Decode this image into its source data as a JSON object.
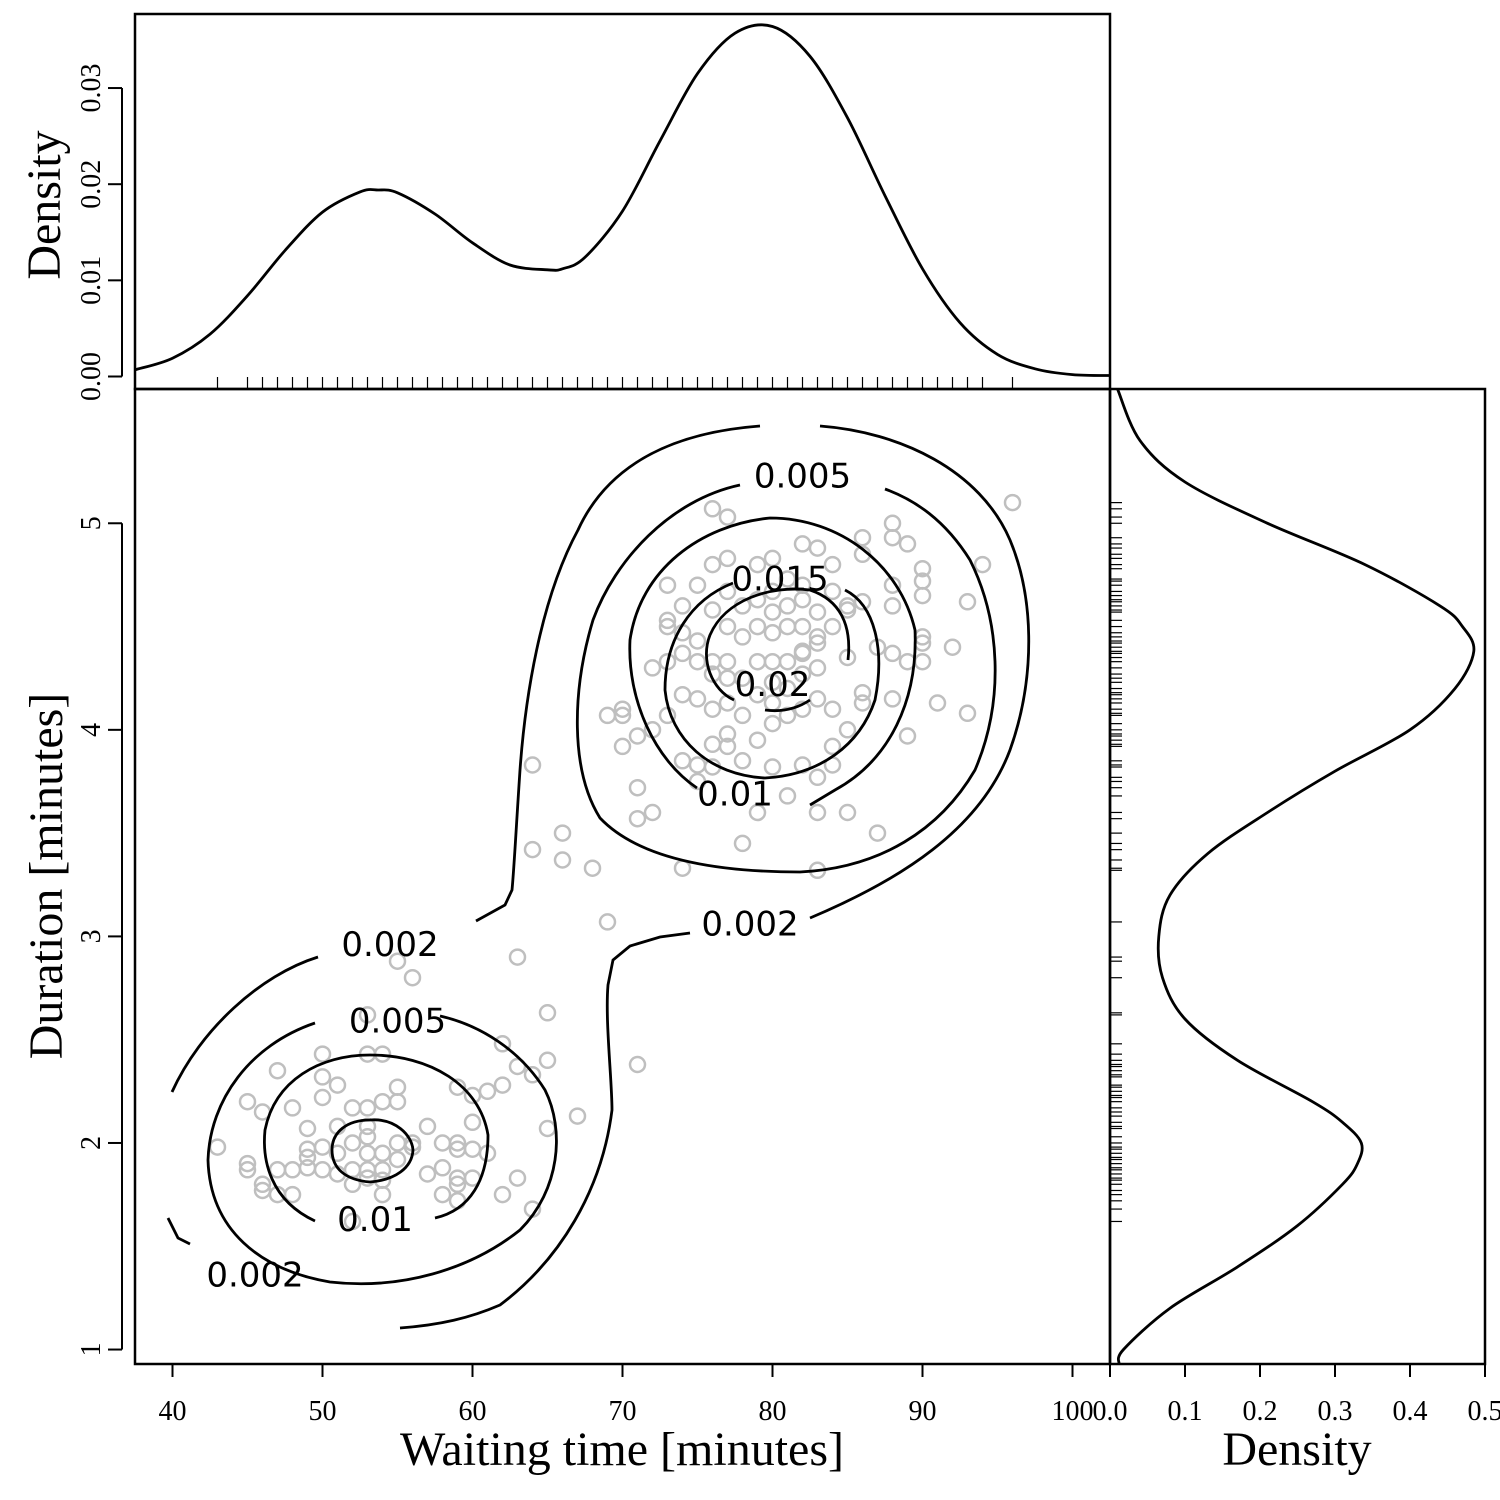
{
  "chart_data": [
    {
      "panel": "joint",
      "type": "scatter",
      "xlabel": "Waiting time [minutes]",
      "ylabel": "Duration [minutes]",
      "xlim": [
        37.5,
        102.5
      ],
      "ylim": [
        0.93,
        5.65
      ],
      "xticks": [
        40,
        50,
        60,
        70,
        80,
        90,
        100
      ],
      "yticks": [
        1,
        2,
        3,
        4,
        5
      ],
      "grid": false,
      "point_color": "#bfbfbf",
      "contour_levels": [
        {
          "label": "0.002"
        },
        {
          "label": "0.005"
        },
        {
          "label": "0.01"
        },
        {
          "label": "0.015"
        },
        {
          "label": "0.02"
        }
      ],
      "contour_labels": [
        {
          "text": "0.002",
          "x": 54.5,
          "y": 2.95
        },
        {
          "text": "0.002",
          "x": 78.5,
          "y": 3.05
        },
        {
          "text": "0.002",
          "x": 45.5,
          "y": 1.35
        },
        {
          "text": "0.005",
          "x": 55.0,
          "y": 2.58
        },
        {
          "text": "0.005",
          "x": 82.0,
          "y": 5.22
        },
        {
          "text": "0.01",
          "x": 53.5,
          "y": 1.62
        },
        {
          "text": "0.01",
          "x": 77.5,
          "y": 3.68
        },
        {
          "text": "0.015",
          "x": 80.5,
          "y": 4.72
        },
        {
          "text": "0.02",
          "x": 80.0,
          "y": 4.21
        }
      ],
      "points": [
        [
          43,
          1.98
        ],
        [
          45,
          2.2
        ],
        [
          45,
          1.9
        ],
        [
          45,
          1.87
        ],
        [
          46,
          2.15
        ],
        [
          46,
          1.8
        ],
        [
          46,
          1.77
        ],
        [
          47,
          2.35
        ],
        [
          47,
          1.87
        ],
        [
          47,
          1.75
        ],
        [
          48,
          2.17
        ],
        [
          48,
          1.87
        ],
        [
          48,
          1.75
        ],
        [
          49,
          2.07
        ],
        [
          49,
          1.97
        ],
        [
          49,
          1.88
        ],
        [
          49,
          1.93
        ],
        [
          50,
          2.43
        ],
        [
          50,
          2.32
        ],
        [
          50,
          2.22
        ],
        [
          50,
          1.98
        ],
        [
          50,
          1.87
        ],
        [
          51,
          2.28
        ],
        [
          51,
          2.08
        ],
        [
          51,
          1.95
        ],
        [
          51,
          1.85
        ],
        [
          52,
          2.17
        ],
        [
          52,
          2.0
        ],
        [
          52,
          1.87
        ],
        [
          52,
          1.8
        ],
        [
          52,
          1.62
        ],
        [
          53,
          2.62
        ],
        [
          53,
          2.43
        ],
        [
          53,
          2.17
        ],
        [
          53,
          2.08
        ],
        [
          53,
          2.03
        ],
        [
          53,
          1.95
        ],
        [
          53,
          1.87
        ],
        [
          53,
          1.83
        ],
        [
          54,
          2.43
        ],
        [
          54,
          2.2
        ],
        [
          54,
          1.95
        ],
        [
          54,
          1.87
        ],
        [
          54,
          1.82
        ],
        [
          54,
          1.75
        ],
        [
          55,
          2.88
        ],
        [
          55,
          2.27
        ],
        [
          55,
          2.2
        ],
        [
          55,
          2.0
        ],
        [
          55,
          1.92
        ],
        [
          56,
          2.8
        ],
        [
          56,
          2.0
        ],
        [
          56,
          1.98
        ],
        [
          57,
          2.08
        ],
        [
          57,
          1.85
        ],
        [
          58,
          2.0
        ],
        [
          58,
          1.88
        ],
        [
          58,
          1.75
        ],
        [
          59,
          2.27
        ],
        [
          59,
          2.0
        ],
        [
          59,
          1.97
        ],
        [
          59,
          1.83
        ],
        [
          59,
          1.8
        ],
        [
          59,
          1.72
        ],
        [
          60,
          2.23
        ],
        [
          60,
          2.1
        ],
        [
          60,
          1.97
        ],
        [
          60,
          1.83
        ],
        [
          61,
          2.25
        ],
        [
          61,
          1.95
        ],
        [
          62,
          2.48
        ],
        [
          62,
          2.28
        ],
        [
          62,
          1.75
        ],
        [
          63,
          2.9
        ],
        [
          63,
          2.37
        ],
        [
          63,
          1.83
        ],
        [
          64,
          3.83
        ],
        [
          64,
          3.42
        ],
        [
          64,
          2.33
        ],
        [
          64,
          1.68
        ],
        [
          65,
          2.63
        ],
        [
          65,
          2.4
        ],
        [
          65,
          2.07
        ],
        [
          66,
          3.5
        ],
        [
          66,
          3.37
        ],
        [
          67,
          2.13
        ],
        [
          68,
          3.33
        ],
        [
          69,
          4.07
        ],
        [
          69,
          3.07
        ],
        [
          70,
          4.1
        ],
        [
          70,
          4.07
        ],
        [
          70,
          3.92
        ],
        [
          71,
          3.97
        ],
        [
          71,
          3.72
        ],
        [
          71,
          3.57
        ],
        [
          71,
          2.38
        ],
        [
          72,
          4.3
        ],
        [
          72,
          4.0
        ],
        [
          72,
          3.6
        ],
        [
          73,
          4.7
        ],
        [
          73,
          4.53
        ],
        [
          73,
          4.5
        ],
        [
          73,
          4.33
        ],
        [
          73,
          4.07
        ],
        [
          74,
          4.6
        ],
        [
          74,
          4.47
        ],
        [
          74,
          4.37
        ],
        [
          74,
          4.17
        ],
        [
          74,
          3.85
        ],
        [
          74,
          3.33
        ],
        [
          75,
          4.7
        ],
        [
          75,
          4.43
        ],
        [
          75,
          4.33
        ],
        [
          75,
          4.15
        ],
        [
          75,
          3.83
        ],
        [
          75,
          3.75
        ],
        [
          76,
          5.07
        ],
        [
          76,
          4.8
        ],
        [
          76,
          4.58
        ],
        [
          76,
          4.33
        ],
        [
          76,
          4.27
        ],
        [
          76,
          4.1
        ],
        [
          76,
          3.93
        ],
        [
          76,
          3.82
        ],
        [
          77,
          5.03
        ],
        [
          77,
          4.83
        ],
        [
          77,
          4.67
        ],
        [
          77,
          4.5
        ],
        [
          77,
          4.33
        ],
        [
          77,
          4.25
        ],
        [
          77,
          4.13
        ],
        [
          77,
          3.98
        ],
        [
          77,
          3.92
        ],
        [
          78,
          4.6
        ],
        [
          78,
          4.45
        ],
        [
          78,
          4.25
        ],
        [
          78,
          4.07
        ],
        [
          78,
          3.85
        ],
        [
          78,
          3.45
        ],
        [
          79,
          4.8
        ],
        [
          79,
          4.63
        ],
        [
          79,
          4.5
        ],
        [
          79,
          4.33
        ],
        [
          79,
          4.17
        ],
        [
          79,
          3.95
        ],
        [
          79,
          3.6
        ],
        [
          80,
          4.83
        ],
        [
          80,
          4.67
        ],
        [
          80,
          4.57
        ],
        [
          80,
          4.47
        ],
        [
          80,
          4.33
        ],
        [
          80,
          4.23
        ],
        [
          80,
          4.13
        ],
        [
          80,
          4.03
        ],
        [
          80,
          3.82
        ],
        [
          81,
          4.73
        ],
        [
          81,
          4.6
        ],
        [
          81,
          4.5
        ],
        [
          81,
          4.33
        ],
        [
          81,
          4.2
        ],
        [
          81,
          4.07
        ],
        [
          81,
          3.68
        ],
        [
          82,
          4.9
        ],
        [
          82,
          4.7
        ],
        [
          82,
          4.63
        ],
        [
          82,
          4.5
        ],
        [
          82,
          4.38
        ],
        [
          82,
          4.37
        ],
        [
          82,
          4.27
        ],
        [
          82,
          4.1
        ],
        [
          82,
          3.83
        ],
        [
          83,
          4.88
        ],
        [
          83,
          4.57
        ],
        [
          83,
          4.45
        ],
        [
          83,
          4.42
        ],
        [
          83,
          4.3
        ],
        [
          83,
          4.15
        ],
        [
          83,
          3.77
        ],
        [
          83,
          3.6
        ],
        [
          83,
          3.32
        ],
        [
          84,
          4.8
        ],
        [
          84,
          4.67
        ],
        [
          84,
          4.5
        ],
        [
          84,
          4.1
        ],
        [
          84,
          3.92
        ],
        [
          84,
          3.83
        ],
        [
          85,
          4.6
        ],
        [
          85,
          4.58
        ],
        [
          85,
          4.35
        ],
        [
          85,
          4.0
        ],
        [
          85,
          3.6
        ],
        [
          86,
          4.93
        ],
        [
          86,
          4.85
        ],
        [
          86,
          4.62
        ],
        [
          86,
          4.18
        ],
        [
          86,
          4.13
        ],
        [
          87,
          4.4
        ],
        [
          87,
          3.5
        ],
        [
          88,
          5.0
        ],
        [
          88,
          4.93
        ],
        [
          88,
          4.7
        ],
        [
          88,
          4.6
        ],
        [
          88,
          4.37
        ],
        [
          88,
          4.15
        ],
        [
          89,
          4.9
        ],
        [
          89,
          4.33
        ],
        [
          89,
          3.97
        ],
        [
          90,
          4.78
        ],
        [
          90,
          4.72
        ],
        [
          90,
          4.65
        ],
        [
          90,
          4.45
        ],
        [
          90,
          4.42
        ],
        [
          90,
          4.33
        ],
        [
          91,
          4.13
        ],
        [
          92,
          4.4
        ],
        [
          93,
          4.62
        ],
        [
          93,
          4.08
        ],
        [
          94,
          4.8
        ],
        [
          96,
          5.1
        ]
      ]
    },
    {
      "panel": "top-marginal",
      "type": "line",
      "ylabel": "Density",
      "xlim": [
        37.5,
        102.5
      ],
      "ylim": [
        -0.0013,
        0.0377
      ],
      "yticks": [
        "0.00",
        "0.01",
        "0.02",
        "0.03"
      ],
      "ytick_values": [
        0,
        0.01,
        0.02,
        0.03
      ],
      "x": [
        37.5,
        40,
        42.5,
        45,
        47.5,
        50,
        52.5,
        53.7,
        55,
        57.5,
        60,
        62.5,
        65,
        66,
        67.5,
        70,
        72.5,
        75,
        77.5,
        80,
        82.5,
        85,
        87.5,
        90,
        92.5,
        95,
        97.5,
        100,
        102.5
      ],
      "y": [
        0.0007,
        0.0019,
        0.0044,
        0.0084,
        0.0131,
        0.0171,
        0.0192,
        0.0194,
        0.0191,
        0.0169,
        0.0139,
        0.0116,
        0.0111,
        0.0112,
        0.0124,
        0.0172,
        0.0245,
        0.0315,
        0.0357,
        0.0364,
        0.0333,
        0.0269,
        0.0188,
        0.0112,
        0.0056,
        0.0023,
        0.0008,
        0.0002,
        0.0001
      ]
    },
    {
      "panel": "right-marginal",
      "type": "line",
      "xlabel": "Density",
      "xlim": [
        0.0,
        0.5
      ],
      "xticks": [
        "0.0",
        "0.1",
        "0.2",
        "0.3",
        "0.4",
        "0.5"
      ],
      "xtick_values": [
        0,
        0.1,
        0.2,
        0.3,
        0.4,
        0.5
      ],
      "duration": [
        0.93,
        1.0,
        1.2,
        1.4,
        1.6,
        1.8,
        1.9,
        2.0,
        2.1,
        2.2,
        2.4,
        2.6,
        2.8,
        3.0,
        3.2,
        3.4,
        3.6,
        3.8,
        4.0,
        4.2,
        4.38,
        4.5,
        4.6,
        4.8,
        5.0,
        5.2,
        5.4,
        5.65
      ],
      "density": [
        0.012,
        0.018,
        0.08,
        0.17,
        0.25,
        0.31,
        0.33,
        0.335,
        0.31,
        0.27,
        0.17,
        0.1,
        0.07,
        0.065,
        0.08,
        0.13,
        0.21,
        0.3,
        0.4,
        0.46,
        0.485,
        0.47,
        0.44,
        0.34,
        0.21,
        0.1,
        0.04,
        0.01
      ]
    }
  ]
}
